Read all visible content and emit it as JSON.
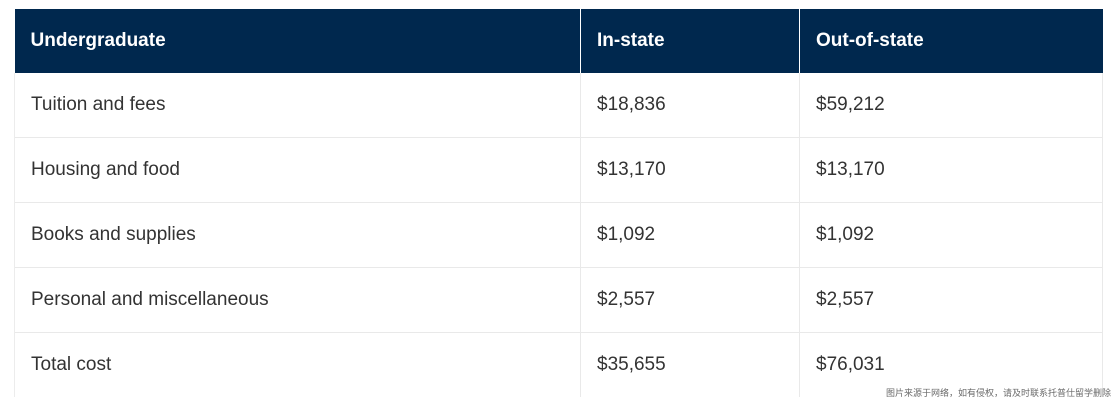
{
  "table": {
    "headers": [
      "Undergraduate",
      "In-state",
      "Out-of-state"
    ],
    "rows": [
      {
        "label": "Tuition and fees",
        "in_state": "$18,836",
        "out_of_state": "$59,212"
      },
      {
        "label": "Housing and food",
        "in_state": "$13,170",
        "out_of_state": "$13,170"
      },
      {
        "label": "Books and supplies",
        "in_state": "$1,092",
        "out_of_state": "$1,092"
      },
      {
        "label": "Personal and miscellaneous",
        "in_state": "$2,557",
        "out_of_state": "$2,557"
      },
      {
        "label": "Total cost",
        "in_state": "$35,655",
        "out_of_state": "$76,031"
      }
    ]
  },
  "watermark": "图片来源于网络，如有侵权，请及时联系托普仕留学删除",
  "colors": {
    "header_bg": "#00284e",
    "header_text": "#ffffff",
    "body_text": "#333333",
    "grid_line": "#e9e9e9"
  }
}
